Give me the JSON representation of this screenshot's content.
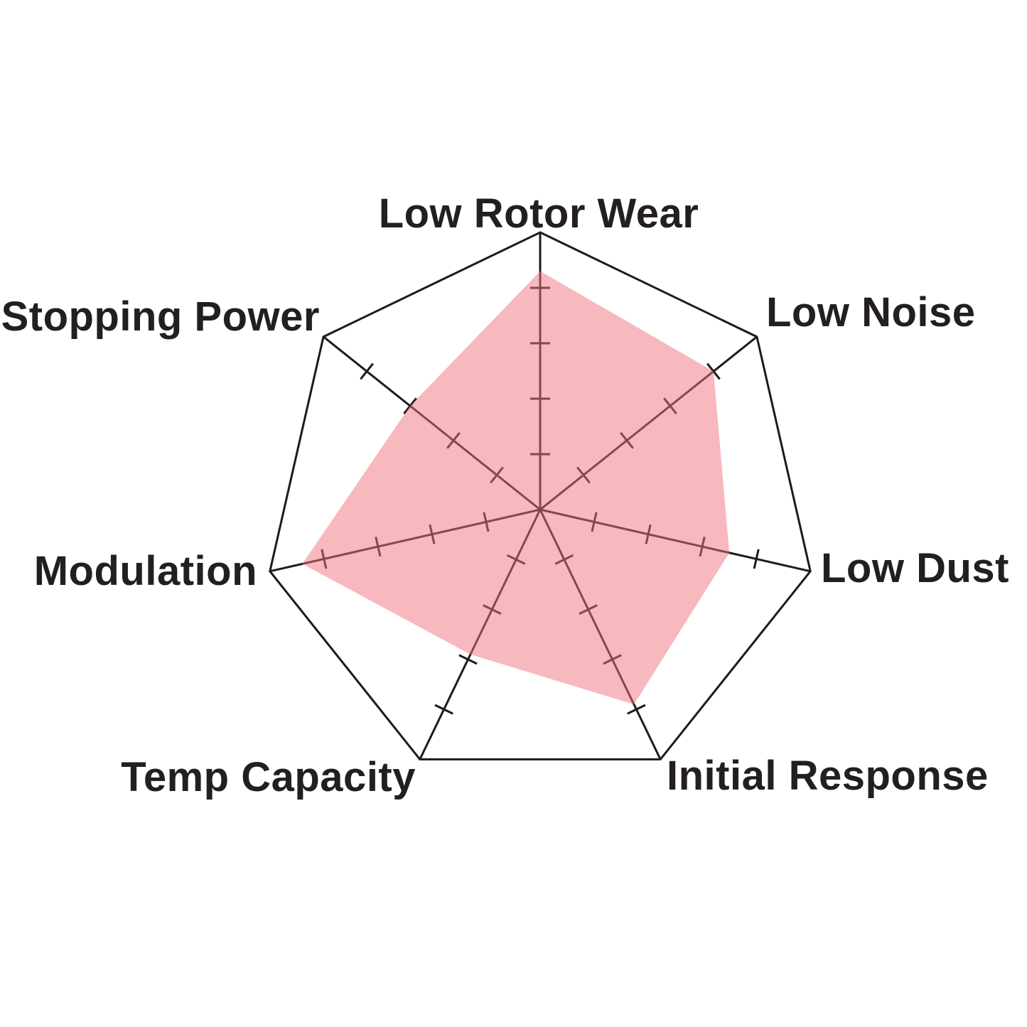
{
  "chart_data": {
    "type": "radar",
    "categories": [
      "Low Rotor Wear",
      "Low Noise",
      "Low Dust",
      "Initial Response",
      "Temp Capacity",
      "Modulation",
      "Stopping Power"
    ],
    "values": [
      4.3,
      4.0,
      3.5,
      3.9,
      2.9,
      4.4,
      3.0
    ],
    "axis_min": 0,
    "axis_max": 5,
    "ticks_per_axis": 4,
    "grid": "spokes-with-ticks",
    "legend_position": "none",
    "colors": {
      "fill": "rgba(239,114,125,0.5)",
      "line": "#1c1c1c",
      "label": "#231f20",
      "background": "#ffffff"
    }
  }
}
